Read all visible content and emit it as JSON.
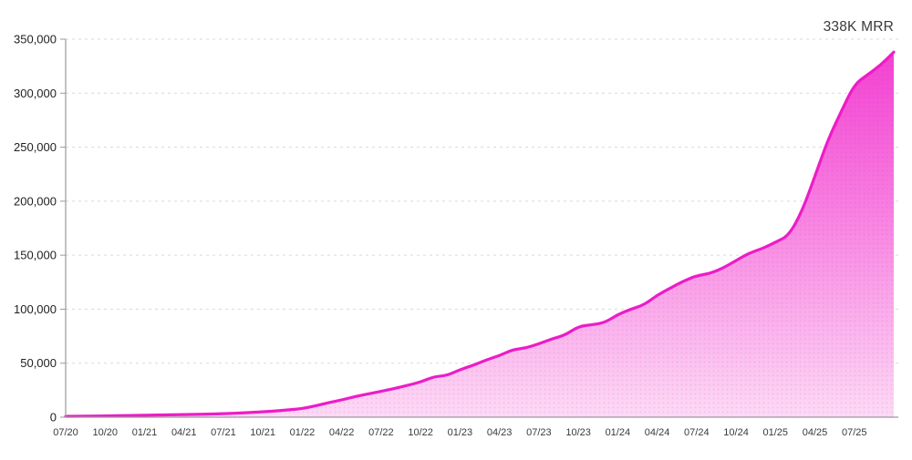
{
  "header": {
    "title": "338K MRR"
  },
  "chart_data": {
    "type": "area",
    "title": "338K MRR",
    "xlabel": "",
    "ylabel": "",
    "ylim": [
      0,
      350000
    ],
    "grid": "horizontal-dashed",
    "legend": "none",
    "y_ticks": [
      0,
      50000,
      100000,
      150000,
      200000,
      250000,
      300000,
      350000
    ],
    "x_tick_every": 3,
    "x_tick_labels": [
      "07/20",
      "10/20",
      "01/21",
      "04/21",
      "07/21",
      "10/21",
      "01/22",
      "04/22",
      "07/22",
      "10/22",
      "01/23",
      "04/23",
      "07/23",
      "10/23",
      "01/24",
      "04/24",
      "07/24",
      "10/24",
      "01/25",
      "04/25",
      "07/25"
    ],
    "months": [
      "07/20",
      "08/20",
      "09/20",
      "10/20",
      "11/20",
      "12/20",
      "01/21",
      "02/21",
      "03/21",
      "04/21",
      "05/21",
      "06/21",
      "07/21",
      "08/21",
      "09/21",
      "10/21",
      "11/21",
      "12/21",
      "01/22",
      "02/22",
      "03/22",
      "04/22",
      "05/22",
      "06/22",
      "07/22",
      "08/22",
      "09/22",
      "10/22",
      "11/22",
      "12/22",
      "01/23",
      "02/23",
      "03/23",
      "04/23",
      "05/23",
      "06/23",
      "07/23",
      "08/23",
      "09/23",
      "10/23",
      "11/23",
      "12/23",
      "01/24",
      "02/24",
      "03/24",
      "04/24",
      "05/24",
      "06/24",
      "07/24",
      "08/24",
      "09/24",
      "10/24",
      "11/24",
      "12/24",
      "01/25",
      "02/25",
      "03/25",
      "04/25",
      "05/25",
      "06/25",
      "07/25",
      "08/25",
      "09/25",
      "10/25"
    ],
    "values": [
      800,
      900,
      1000,
      1200,
      1400,
      1600,
      1800,
      2000,
      2200,
      2400,
      2600,
      2900,
      3200,
      3700,
      4300,
      5000,
      5800,
      6800,
      8000,
      10500,
      13500,
      16000,
      19000,
      21500,
      24000,
      26500,
      29500,
      32500,
      37500,
      38500,
      44000,
      48000,
      53000,
      57000,
      62500,
      64000,
      68000,
      72500,
      76000,
      84000,
      85500,
      87500,
      95000,
      100000,
      104000,
      113000,
      119500,
      126000,
      131000,
      133000,
      138000,
      145000,
      152000,
      156000,
      162000,
      168000,
      190000,
      223000,
      257000,
      283000,
      308000,
      317000,
      326000,
      338000
    ],
    "colors": {
      "line": "#ed1cc7",
      "fill_top": "#f23cd1",
      "fill_mid": "#f77fe0",
      "fill_bottom": "#fcdaf5",
      "dot_texture": "#d813b8",
      "grid": "#d9d9d9",
      "axis": "#9a9a9a",
      "y_label_text": "#1f1f1f",
      "x_label_text": "#3a3a3a",
      "title_text": "#3a3a3a"
    }
  }
}
